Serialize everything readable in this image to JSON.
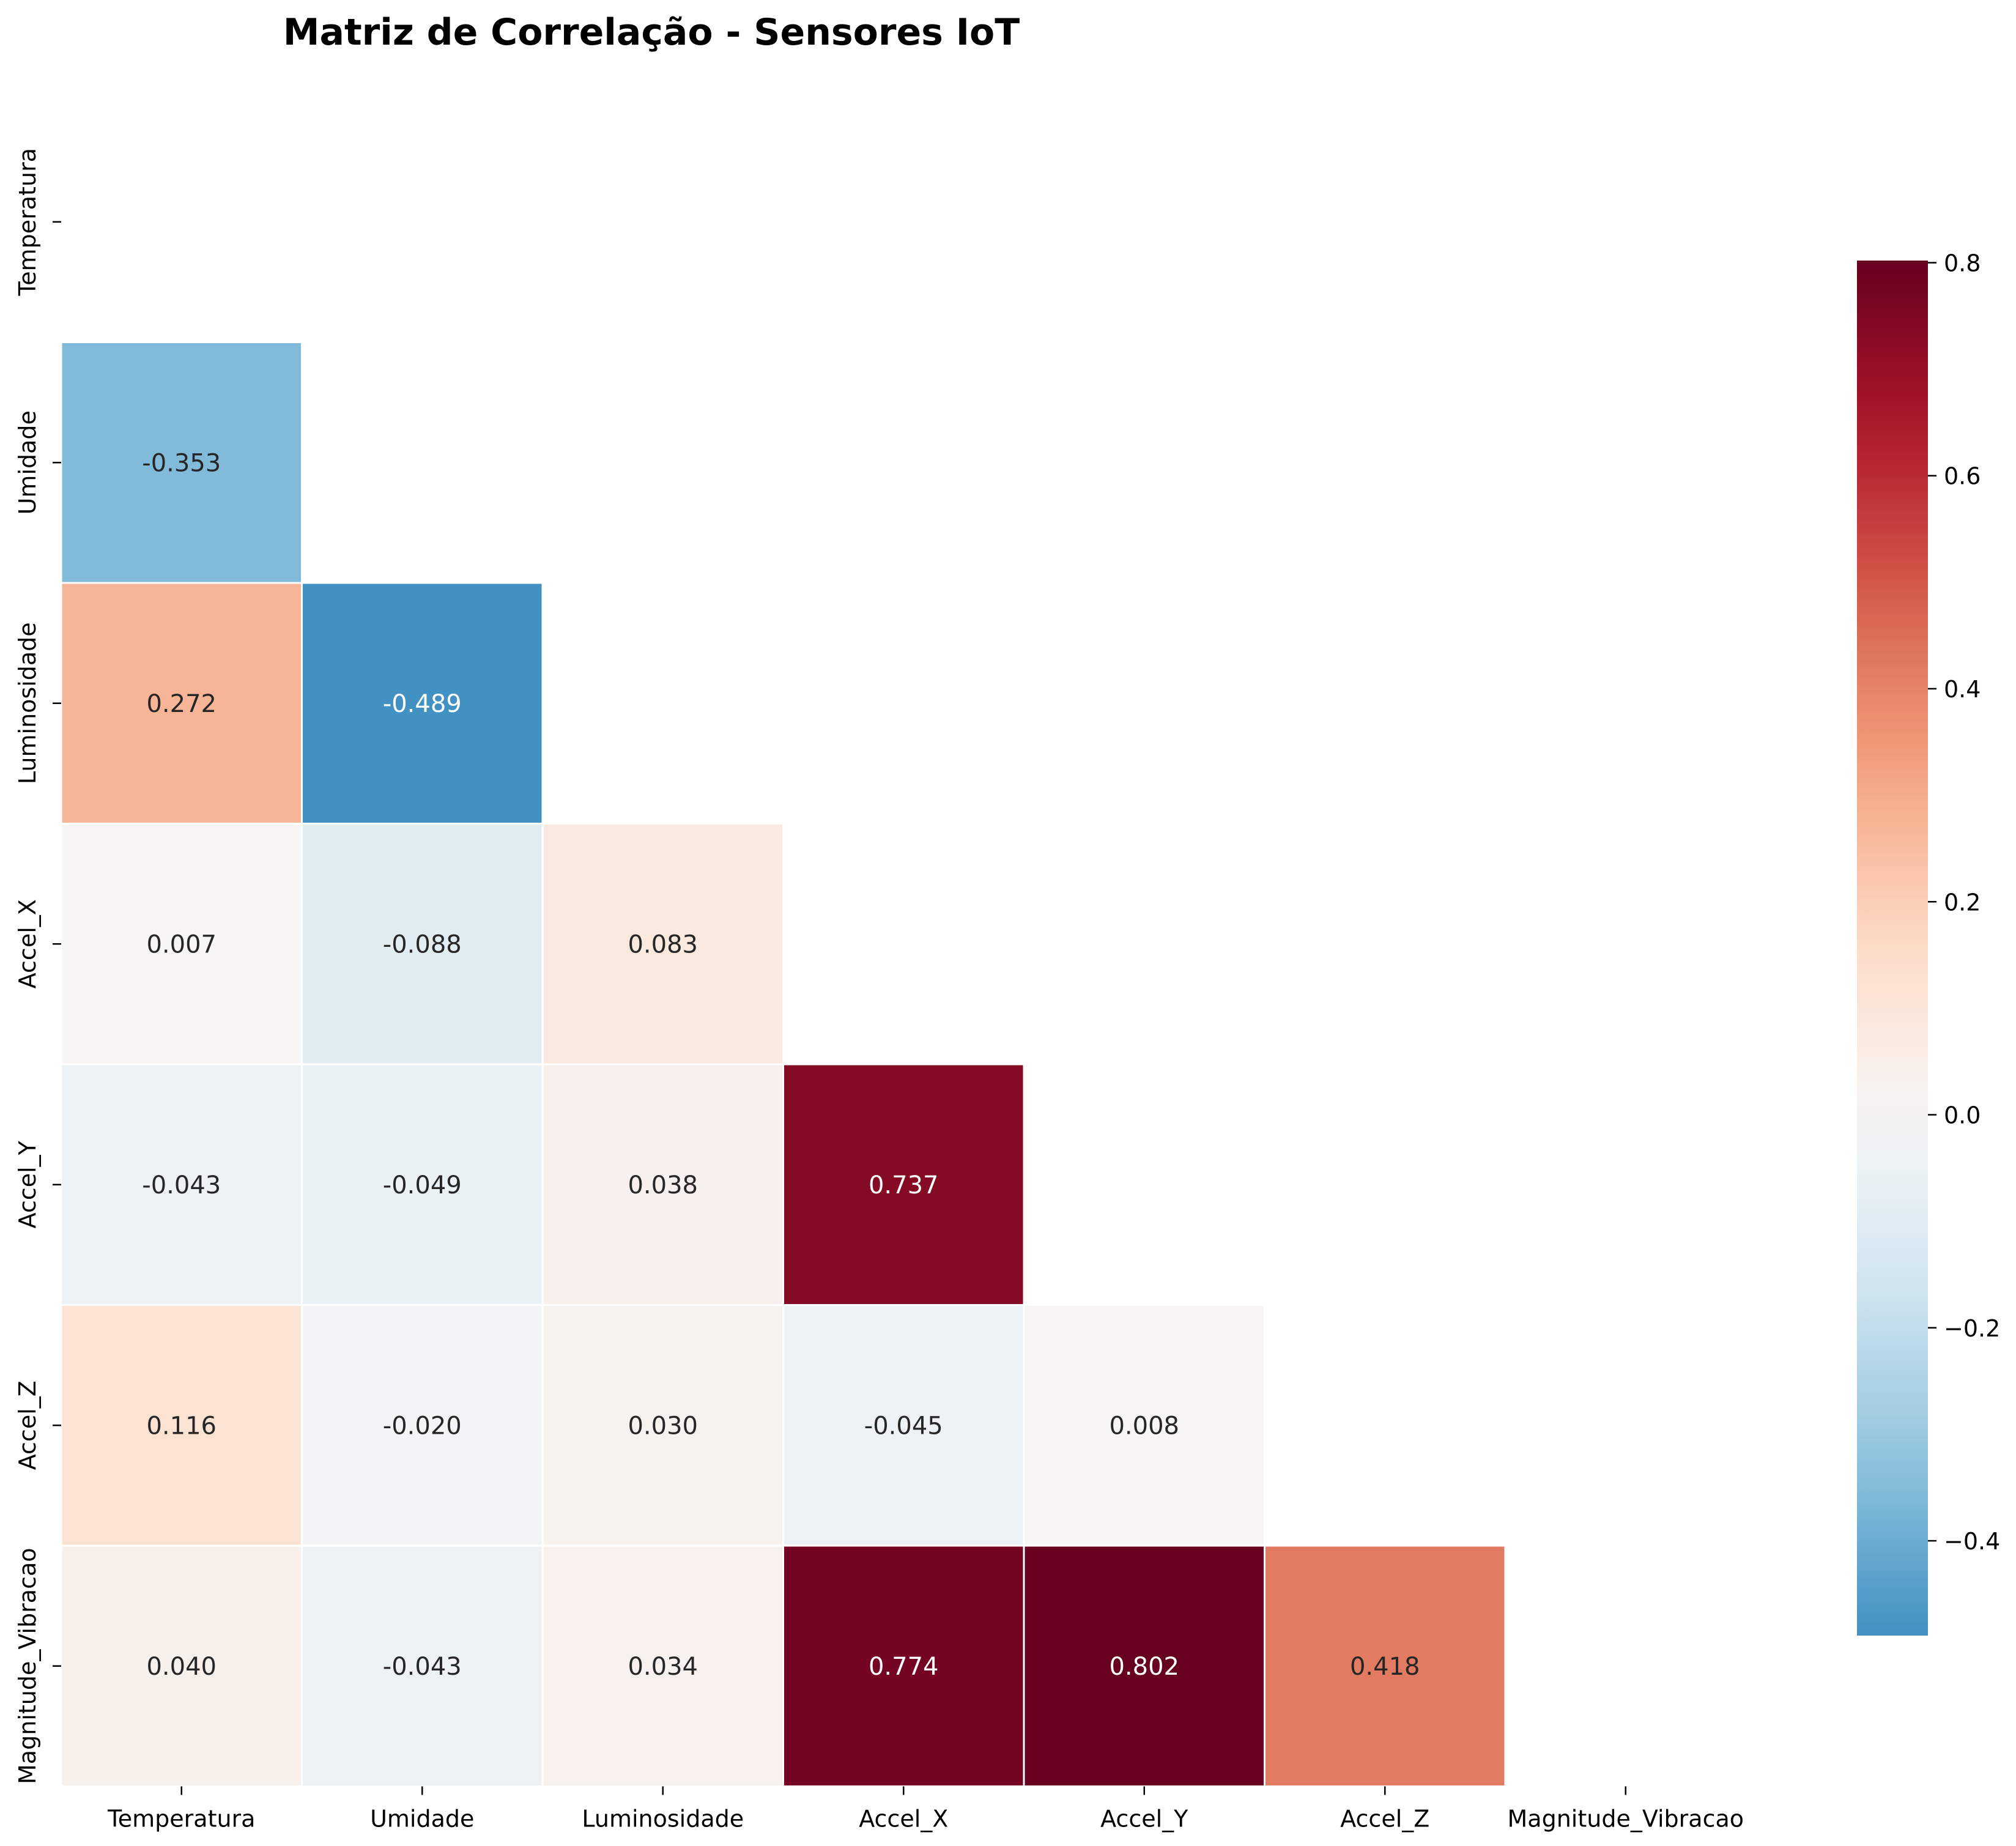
{
  "chart_data": {
    "type": "heatmap",
    "title": "Matriz de Correlação - Sensores IoT",
    "variables": [
      "Temperatura",
      "Umidade",
      "Luminosidade",
      "Accel_X",
      "Accel_Y",
      "Accel_Z",
      "Magnitude_Vibracao"
    ],
    "mask": "upper-triangle-including-diagonal",
    "cells": [
      {
        "row": "Umidade",
        "col": "Temperatura",
        "value": -0.353,
        "label": "-0.353"
      },
      {
        "row": "Luminosidade",
        "col": "Temperatura",
        "value": 0.272,
        "label": "0.272"
      },
      {
        "row": "Luminosidade",
        "col": "Umidade",
        "value": -0.489,
        "label": "-0.489"
      },
      {
        "row": "Accel_X",
        "col": "Temperatura",
        "value": 0.007,
        "label": "0.007"
      },
      {
        "row": "Accel_X",
        "col": "Umidade",
        "value": -0.088,
        "label": "-0.088"
      },
      {
        "row": "Accel_X",
        "col": "Luminosidade",
        "value": 0.083,
        "label": "0.083"
      },
      {
        "row": "Accel_Y",
        "col": "Temperatura",
        "value": -0.043,
        "label": "-0.043"
      },
      {
        "row": "Accel_Y",
        "col": "Umidade",
        "value": -0.049,
        "label": "-0.049"
      },
      {
        "row": "Accel_Y",
        "col": "Luminosidade",
        "value": 0.038,
        "label": "0.038"
      },
      {
        "row": "Accel_Y",
        "col": "Accel_X",
        "value": 0.737,
        "label": "0.737"
      },
      {
        "row": "Accel_Z",
        "col": "Temperatura",
        "value": 0.116,
        "label": "0.116"
      },
      {
        "row": "Accel_Z",
        "col": "Umidade",
        "value": -0.02,
        "label": "-0.020"
      },
      {
        "row": "Accel_Z",
        "col": "Luminosidade",
        "value": 0.03,
        "label": "0.030"
      },
      {
        "row": "Accel_Z",
        "col": "Accel_X",
        "value": -0.045,
        "label": "-0.045"
      },
      {
        "row": "Accel_Z",
        "col": "Accel_Y",
        "value": 0.008,
        "label": "0.008"
      },
      {
        "row": "Magnitude_Vibracao",
        "col": "Temperatura",
        "value": 0.04,
        "label": "0.040"
      },
      {
        "row": "Magnitude_Vibracao",
        "col": "Umidade",
        "value": -0.043,
        "label": "-0.043"
      },
      {
        "row": "Magnitude_Vibracao",
        "col": "Luminosidade",
        "value": 0.034,
        "label": "0.034"
      },
      {
        "row": "Magnitude_Vibracao",
        "col": "Accel_X",
        "value": 0.774,
        "label": "0.774"
      },
      {
        "row": "Magnitude_Vibracao",
        "col": "Accel_Y",
        "value": 0.802,
        "label": "0.802"
      },
      {
        "row": "Magnitude_Vibracao",
        "col": "Accel_Z",
        "value": 0.418,
        "label": "0.418"
      }
    ],
    "colormap": "RdBu_r",
    "colormap_center": 0,
    "color_range": [
      -0.489,
      0.802
    ],
    "colorbar": {
      "position": "right",
      "ticks": [
        {
          "value": 0.8,
          "label": "0.8"
        },
        {
          "value": 0.6,
          "label": "0.6"
        },
        {
          "value": 0.4,
          "label": "0.4"
        },
        {
          "value": 0.2,
          "label": "0.2"
        },
        {
          "value": 0.0,
          "label": "0.0"
        },
        {
          "value": -0.2,
          "label": "−0.2"
        },
        {
          "value": -0.4,
          "label": "−0.4"
        }
      ]
    },
    "grid": false,
    "cell_border_color": "#ffffff"
  }
}
